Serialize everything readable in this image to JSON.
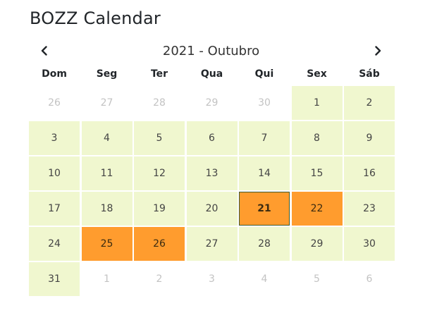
{
  "app": {
    "title": "BOZZ Calendar"
  },
  "calendar": {
    "month_label": "2021 - Outubro",
    "prev_icon": "chevron-left-icon",
    "next_icon": "chevron-right-icon",
    "weekdays": [
      "Dom",
      "Seg",
      "Ter",
      "Qua",
      "Qui",
      "Sex",
      "Sáb"
    ],
    "colors": {
      "current_month_bg": "#f0f7cf",
      "event_bg": "#ff9c2e",
      "other_month_text": "#c3c3c3",
      "today_border": "#3d5a2a"
    },
    "days": [
      {
        "label": "26",
        "type": "other"
      },
      {
        "label": "27",
        "type": "other"
      },
      {
        "label": "28",
        "type": "other"
      },
      {
        "label": "29",
        "type": "other"
      },
      {
        "label": "30",
        "type": "other"
      },
      {
        "label": "1",
        "type": "current"
      },
      {
        "label": "2",
        "type": "current"
      },
      {
        "label": "3",
        "type": "current"
      },
      {
        "label": "4",
        "type": "current"
      },
      {
        "label": "5",
        "type": "current"
      },
      {
        "label": "6",
        "type": "current"
      },
      {
        "label": "7",
        "type": "current"
      },
      {
        "label": "8",
        "type": "current"
      },
      {
        "label": "9",
        "type": "current"
      },
      {
        "label": "10",
        "type": "current"
      },
      {
        "label": "11",
        "type": "current"
      },
      {
        "label": "12",
        "type": "current"
      },
      {
        "label": "13",
        "type": "current"
      },
      {
        "label": "14",
        "type": "current"
      },
      {
        "label": "15",
        "type": "current"
      },
      {
        "label": "16",
        "type": "current"
      },
      {
        "label": "17",
        "type": "current"
      },
      {
        "label": "18",
        "type": "current"
      },
      {
        "label": "19",
        "type": "current"
      },
      {
        "label": "20",
        "type": "current"
      },
      {
        "label": "21",
        "type": "event",
        "today": true
      },
      {
        "label": "22",
        "type": "event"
      },
      {
        "label": "23",
        "type": "current"
      },
      {
        "label": "24",
        "type": "current"
      },
      {
        "label": "25",
        "type": "event"
      },
      {
        "label": "26",
        "type": "event"
      },
      {
        "label": "27",
        "type": "current"
      },
      {
        "label": "28",
        "type": "current"
      },
      {
        "label": "29",
        "type": "current"
      },
      {
        "label": "30",
        "type": "current"
      },
      {
        "label": "31",
        "type": "current"
      },
      {
        "label": "1",
        "type": "other"
      },
      {
        "label": "2",
        "type": "other"
      },
      {
        "label": "3",
        "type": "other"
      },
      {
        "label": "4",
        "type": "other"
      },
      {
        "label": "5",
        "type": "other"
      },
      {
        "label": "6",
        "type": "other"
      }
    ]
  }
}
